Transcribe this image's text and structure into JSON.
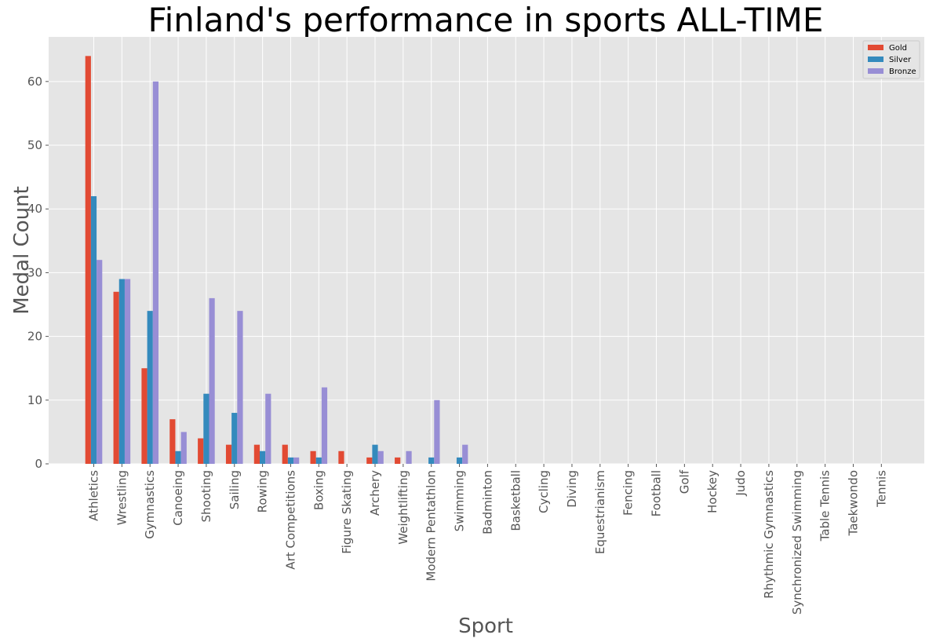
{
  "chart_data": {
    "type": "bar",
    "title": "Finland's performance in sports ALL-TIME",
    "xlabel": "Sport",
    "ylabel": "Medal Count",
    "ylim": [
      0,
      67
    ],
    "yticks": [
      0,
      10,
      20,
      30,
      40,
      50,
      60
    ],
    "grid": true,
    "legend_position": "top-right",
    "categories": [
      "Athletics",
      "Wrestling",
      "Gymnastics",
      "Canoeing",
      "Shooting",
      "Sailing",
      "Rowing",
      "Art Competitions",
      "Boxing",
      "Figure Skating",
      "Archery",
      "Weightlifting",
      "Modern Pentathlon",
      "Swimming",
      "Badminton",
      "Basketball",
      "Cycling",
      "Diving",
      "Equestrianism",
      "Fencing",
      "Football",
      "Golf",
      "Hockey",
      "Judo",
      "Rhythmic Gymnastics",
      "Synchronized Swimming",
      "Table Tennis",
      "Taekwondo",
      "Tennis"
    ],
    "series": [
      {
        "name": "Gold",
        "color": "#e24a33",
        "values": [
          64,
          27,
          15,
          7,
          4,
          3,
          3,
          3,
          2,
          2,
          1,
          1,
          0,
          0,
          0,
          0,
          0,
          0,
          0,
          0,
          0,
          0,
          0,
          0,
          0,
          0,
          0,
          0,
          0
        ]
      },
      {
        "name": "Silver",
        "color": "#348abd",
        "values": [
          42,
          29,
          24,
          2,
          11,
          8,
          2,
          1,
          1,
          0,
          3,
          0,
          1,
          1,
          0,
          0,
          0,
          0,
          0,
          0,
          0,
          0,
          0,
          0,
          0,
          0,
          0,
          0,
          0
        ]
      },
      {
        "name": "Bronze",
        "color": "#988ed5",
        "values": [
          32,
          29,
          60,
          5,
          26,
          24,
          11,
          1,
          12,
          0,
          2,
          2,
          10,
          3,
          0,
          0,
          0,
          0,
          0,
          0,
          0,
          0,
          0,
          0,
          0,
          0,
          0,
          0,
          0
        ]
      }
    ],
    "colors": {
      "plot_background": "#e5e5e5",
      "grid": "#ffffff",
      "tick_text": "#555555"
    }
  }
}
